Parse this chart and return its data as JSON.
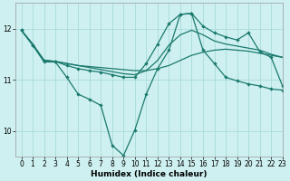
{
  "xlabel": "Humidex (Indice chaleur)",
  "bg_color": "#cef0f0",
  "grid_color": "#aadada",
  "line_color": "#1a7a6e",
  "xlim": [
    -0.5,
    23
  ],
  "ylim": [
    9.5,
    12.5
  ],
  "yticks": [
    10,
    11,
    12
  ],
  "xticks": [
    0,
    1,
    2,
    3,
    4,
    5,
    6,
    7,
    8,
    9,
    10,
    11,
    12,
    13,
    14,
    15,
    16,
    17,
    18,
    19,
    20,
    21,
    22,
    23
  ],
  "line1_x": [
    0,
    1,
    2,
    3,
    4,
    5,
    6,
    7,
    8,
    9,
    10,
    11,
    12,
    13,
    14,
    15,
    16,
    17,
    18,
    19,
    20,
    21,
    22,
    23
  ],
  "line1_y": [
    11.97,
    11.7,
    11.38,
    11.36,
    11.32,
    11.28,
    11.26,
    11.24,
    11.22,
    11.2,
    11.18,
    11.18,
    11.22,
    11.28,
    11.38,
    11.48,
    11.54,
    11.58,
    11.6,
    11.58,
    11.56,
    11.52,
    11.48,
    11.44
  ],
  "line2_x": [
    0,
    1,
    2,
    3,
    4,
    5,
    6,
    7,
    8,
    9,
    10,
    11,
    12,
    13,
    14,
    15,
    16,
    17,
    18,
    19,
    20,
    21,
    22,
    23
  ],
  "line2_y": [
    11.97,
    11.7,
    11.38,
    11.36,
    11.32,
    11.28,
    11.24,
    11.2,
    11.16,
    11.12,
    11.1,
    11.18,
    11.38,
    11.68,
    11.88,
    11.97,
    11.88,
    11.76,
    11.7,
    11.66,
    11.62,
    11.58,
    11.5,
    11.44
  ],
  "line3_x": [
    0,
    1,
    2,
    3,
    4,
    5,
    6,
    7,
    8,
    9,
    10,
    11,
    12,
    13,
    14,
    15,
    16,
    17,
    18,
    19,
    20,
    21,
    22,
    23
  ],
  "line3_y": [
    11.97,
    11.68,
    11.38,
    11.36,
    11.28,
    11.22,
    11.18,
    11.15,
    11.1,
    11.05,
    11.05,
    11.32,
    11.7,
    12.1,
    12.28,
    12.3,
    12.05,
    11.92,
    11.84,
    11.78,
    11.92,
    11.55,
    11.44,
    10.88
  ],
  "line4_x": [
    0,
    1,
    2,
    3,
    4,
    5,
    6,
    7,
    8,
    9,
    10,
    11,
    12,
    13,
    14,
    15,
    16,
    17,
    18,
    19,
    20,
    21,
    22,
    23
  ],
  "line4_y": [
    11.97,
    11.68,
    11.35,
    11.35,
    11.05,
    10.72,
    10.62,
    10.5,
    9.72,
    9.52,
    10.02,
    10.72,
    11.22,
    11.58,
    12.28,
    12.3,
    11.58,
    11.32,
    11.05,
    10.98,
    10.92,
    10.88,
    10.82,
    10.8
  ]
}
